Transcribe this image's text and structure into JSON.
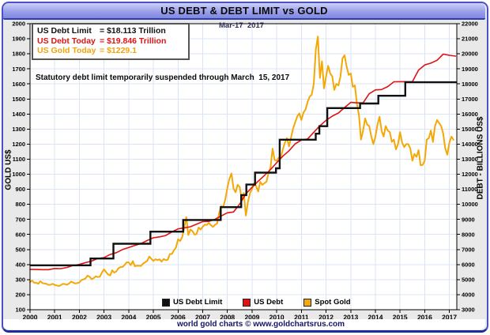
{
  "window": {
    "title": "US DEBT & DEBT LIMIT vs GOLD",
    "footer": "world gold charts © www.goldchartsrus.com"
  },
  "date_label": "Mar-17  2017",
  "annotation": "Statutory debt limit temporarily suspended through March  15, 2017",
  "info_box": {
    "lines": [
      {
        "label": "US Debt Limit",
        "eq": "=",
        "value": "$18.113 Trillion",
        "color": "#111111"
      },
      {
        "label": "US Debt Today",
        "eq": "=",
        "value": "$19.846 Trillion",
        "color": "#e01212"
      },
      {
        "label": "US Gold Today",
        "eq": "=",
        "value": "$1229.1",
        "color": "#efa50a"
      }
    ]
  },
  "legend": {
    "position": "bottom-center",
    "items": [
      {
        "label": "US Debt Limit",
        "color": "#111111"
      },
      {
        "label": "US Debt",
        "color": "#e01212"
      },
      {
        "label": "Spot Gold",
        "color": "#f3a806"
      }
    ]
  },
  "chart_data": {
    "type": "line",
    "title": "US DEBT & DEBT LIMIT vs GOLD",
    "grid": true,
    "x_axis": {
      "min": 2000,
      "max": 2017.3,
      "years": [
        "2000",
        "2001",
        "2002",
        "2003",
        "2004",
        "2005",
        "2006",
        "2007",
        "2008",
        "2009",
        "2010",
        "2011",
        "2012",
        "2013",
        "2014",
        "2015",
        "2016",
        "2017"
      ]
    },
    "left_axis": {
      "label": "GOLD US$",
      "min": 100,
      "max": 2000,
      "tick_step": 100
    },
    "right_axis": {
      "label": "DEBT - BILLIONS US$",
      "min": 3000,
      "max": 22000,
      "tick_step": 1000
    },
    "series": [
      {
        "name": "US Debt Limit",
        "axis": "right",
        "style": "step",
        "color": "#111111",
        "width": 2.4,
        "points": [
          [
            2000.0,
            5950
          ],
          [
            2002.45,
            6400
          ],
          [
            2003.38,
            7384
          ],
          [
            2004.88,
            8184
          ],
          [
            2006.21,
            8965
          ],
          [
            2007.73,
            9815
          ],
          [
            2008.56,
            10615
          ],
          [
            2008.77,
            11315
          ],
          [
            2009.12,
            12104
          ],
          [
            2009.97,
            12394
          ],
          [
            2010.12,
            14294
          ],
          [
            2011.58,
            14694
          ],
          [
            2011.73,
            15194
          ],
          [
            2012.05,
            16394
          ],
          [
            2013.38,
            16699
          ],
          [
            2014.12,
            17212
          ],
          [
            2015.21,
            18113
          ],
          [
            2017.3,
            18113
          ]
        ]
      },
      {
        "name": "US Debt",
        "axis": "right",
        "style": "line",
        "color": "#e01212",
        "width": 1.6,
        "x_start": 2000.0,
        "x_step": 0.25,
        "values": [
          5680,
          5670,
          5660,
          5660,
          5740,
          5730,
          5810,
          5940,
          6010,
          6130,
          6230,
          6410,
          6460,
          6670,
          6790,
          7000,
          7130,
          7270,
          7400,
          7600,
          7780,
          7840,
          7930,
          8170,
          8370,
          8440,
          8510,
          8680,
          8850,
          8870,
          9010,
          9230,
          9440,
          9490,
          10020,
          10700,
          11130,
          11540,
          11910,
          12310,
          12770,
          13200,
          13560,
          14020,
          14270,
          14340,
          14790,
          15220,
          15580,
          15860,
          16070,
          16430,
          16770,
          16740,
          16740,
          17350,
          17600,
          17630,
          17820,
          18140,
          18150,
          18150,
          18150,
          18920,
          19260,
          19380,
          19570,
          19980,
          19900,
          19846
        ]
      },
      {
        "name": "Spot Gold",
        "axis": "left",
        "style": "line",
        "color": "#f3a806",
        "width": 2,
        "x_start": 2000.0,
        "x_step": 0.0833333,
        "values": [
          283,
          294,
          279,
          280,
          272,
          289,
          277,
          274,
          272,
          265,
          266,
          272,
          265,
          261,
          257,
          263,
          272,
          270,
          266,
          274,
          287,
          280,
          274,
          277,
          281,
          297,
          301,
          308,
          326,
          319,
          303,
          310,
          322,
          317,
          320,
          347,
          368,
          350,
          334,
          328,
          362,
          346,
          355,
          375,
          384,
          384,
          398,
          415,
          414,
          396,
          423,
          388,
          393,
          392,
          391,
          407,
          415,
          425,
          453,
          438,
          424,
          436,
          429,
          435,
          419,
          437,
          429,
          433,
          470,
          470,
          495,
          513,
          568,
          556,
          582,
          644,
          715,
          596,
          633,
          623,
          599,
          603,
          646,
          632,
          651,
          665,
          663,
          677,
          661,
          650,
          665,
          672,
          743,
          789,
          783,
          834,
          910,
          970,
          1005,
          905,
          880,
          930,
          915,
          830,
          875,
          725,
          815,
          875,
          900,
          940,
          920,
          885,
          950,
          930,
          940,
          950,
          1005,
          1045,
          1170,
          1095,
          1090,
          1110,
          1110,
          1165,
          1210,
          1240,
          1185,
          1245,
          1305,
          1345,
          1385,
          1405,
          1360,
          1410,
          1430,
          1480,
          1515,
          1528,
          1600,
          1828,
          1915,
          1640,
          1750,
          1570,
          1650,
          1720,
          1670,
          1650,
          1560,
          1600,
          1590,
          1650,
          1770,
          1790,
          1715,
          1660,
          1670,
          1580,
          1590,
          1470,
          1390,
          1230,
          1290,
          1370,
          1330,
          1320,
          1250,
          1200,
          1250,
          1330,
          1382,
          1290,
          1250,
          1320,
          1290,
          1280,
          1215,
          1230,
          1165,
          1200,
          1280,
          1210,
          1180,
          1200,
          1200,
          1170,
          1090,
          1135,
          1115,
          1160,
          1060,
          1062,
          1090,
          1230,
          1240,
          1290,
          1215,
          1320,
          1360,
          1340,
          1320,
          1270,
          1170,
          1130,
          1210,
          1250,
          1229.1
        ]
      }
    ]
  }
}
